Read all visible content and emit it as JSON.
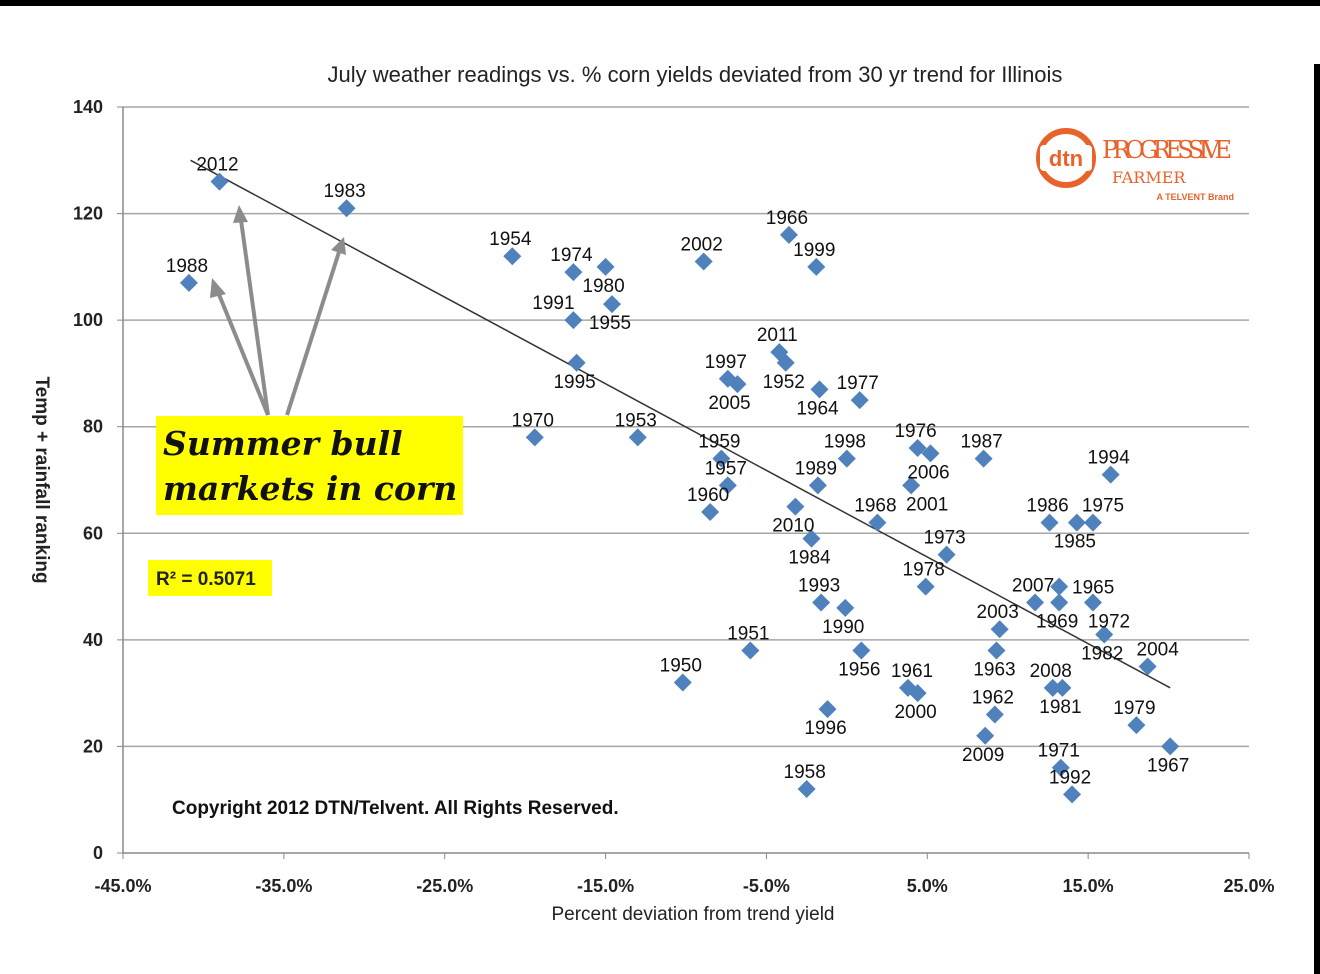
{
  "chart_data": {
    "type": "scatter",
    "title": "July weather readings vs. % corn yields deviated from 30 yr trend for Illinois",
    "xlabel": "Percent deviation from trend yield",
    "ylabel": "Temp + rainfall ranking",
    "xlim": [
      -45,
      25
    ],
    "ylim": [
      0,
      140
    ],
    "xticks": [
      -45,
      -35,
      -25,
      -15,
      -5,
      5,
      15,
      25
    ],
    "xtick_labels": [
      "-45.0%",
      "-35.0%",
      "-25.0%",
      "-15.0%",
      "-5.0%",
      "5.0%",
      "15.0%",
      "25.0%"
    ],
    "yticks": [
      0,
      20,
      40,
      60,
      80,
      100,
      120,
      140
    ],
    "ytick_labels": [
      "0",
      "20",
      "40",
      "60",
      "80",
      "100",
      "120",
      "140"
    ],
    "grid": "horizontal",
    "marker_color": "#4f81bd",
    "points": [
      {
        "label": "2012",
        "x": -39.0,
        "y": 126
      },
      {
        "label": "1983",
        "x": -31.1,
        "y": 121
      },
      {
        "label": "1988",
        "x": -40.9,
        "y": 107
      },
      {
        "label": "1954",
        "x": -20.8,
        "y": 112
      },
      {
        "label": "1974",
        "x": -17.0,
        "y": 109
      },
      {
        "label": "1980",
        "x": -15.0,
        "y": 110
      },
      {
        "label": "1955",
        "x": -14.6,
        "y": 103
      },
      {
        "label": "1991",
        "x": -17.0,
        "y": 100
      },
      {
        "label": "1995",
        "x": -16.8,
        "y": 92
      },
      {
        "label": "2002",
        "x": -8.9,
        "y": 111
      },
      {
        "label": "1966",
        "x": -3.6,
        "y": 116
      },
      {
        "label": "1999",
        "x": -1.9,
        "y": 110
      },
      {
        "label": "2011",
        "x": -4.2,
        "y": 94
      },
      {
        "label": "1952",
        "x": -3.8,
        "y": 92
      },
      {
        "label": "1997",
        "x": -7.4,
        "y": 89
      },
      {
        "label": "2005",
        "x": -6.8,
        "y": 88
      },
      {
        "label": "1964",
        "x": -1.7,
        "y": 87
      },
      {
        "label": "1977",
        "x": 0.8,
        "y": 85
      },
      {
        "label": "1970",
        "x": -19.4,
        "y": 78
      },
      {
        "label": "1953",
        "x": -13.0,
        "y": 78
      },
      {
        "label": "1959",
        "x": -7.8,
        "y": 74
      },
      {
        "label": "1957",
        "x": -7.4,
        "y": 69
      },
      {
        "label": "1960",
        "x": -8.5,
        "y": 64
      },
      {
        "label": "1998",
        "x": 0.0,
        "y": 74
      },
      {
        "label": "1989",
        "x": -1.8,
        "y": 69
      },
      {
        "label": "2010",
        "x": -3.2,
        "y": 65
      },
      {
        "label": "1984",
        "x": -2.2,
        "y": 59
      },
      {
        "label": "1968",
        "x": 1.9,
        "y": 62
      },
      {
        "label": "1976",
        "x": 4.4,
        "y": 76
      },
      {
        "label": "2006",
        "x": 5.2,
        "y": 75
      },
      {
        "label": "2001",
        "x": 4.0,
        "y": 69
      },
      {
        "label": "1987",
        "x": 8.5,
        "y": 74
      },
      {
        "label": "1973",
        "x": 6.2,
        "y": 56
      },
      {
        "label": "1978",
        "x": 4.9,
        "y": 50
      },
      {
        "label": "1993",
        "x": -1.6,
        "y": 47
      },
      {
        "label": "1990",
        "x": -0.1,
        "y": 46
      },
      {
        "label": "1956",
        "x": 0.9,
        "y": 38
      },
      {
        "label": "1951",
        "x": -6.0,
        "y": 38
      },
      {
        "label": "1950",
        "x": -10.2,
        "y": 32
      },
      {
        "label": "1996",
        "x": -1.2,
        "y": 27
      },
      {
        "label": "1958",
        "x": -2.5,
        "y": 12
      },
      {
        "label": "1961",
        "x": 3.8,
        "y": 31
      },
      {
        "label": "2000",
        "x": 4.4,
        "y": 30
      },
      {
        "label": "2003",
        "x": 9.5,
        "y": 42
      },
      {
        "label": "1963",
        "x": 9.3,
        "y": 38
      },
      {
        "label": "1962",
        "x": 9.2,
        "y": 26
      },
      {
        "label": "2009",
        "x": 8.6,
        "y": 22
      },
      {
        "label": "1986",
        "x": 12.6,
        "y": 62
      },
      {
        "label": "1985",
        "x": 14.3,
        "y": 62
      },
      {
        "label": "1975",
        "x": 15.3,
        "y": 62
      },
      {
        "label": "1994",
        "x": 16.4,
        "y": 71
      },
      {
        "label": "2007",
        "x": 11.7,
        "y": 47
      },
      {
        "label": "1965",
        "x": 13.2,
        "y": 50
      },
      {
        "label": "1969",
        "x": 13.2,
        "y": 47
      },
      {
        "label": "1972",
        "x": 15.3,
        "y": 47
      },
      {
        "label": "1982",
        "x": 16.0,
        "y": 41
      },
      {
        "label": "2004",
        "x": 18.7,
        "y": 35
      },
      {
        "label": "2008",
        "x": 12.8,
        "y": 31
      },
      {
        "label": "1981",
        "x": 13.4,
        "y": 31
      },
      {
        "label": "1979",
        "x": 18.0,
        "y": 24
      },
      {
        "label": "1967",
        "x": 20.1,
        "y": 20
      },
      {
        "label": "1971",
        "x": 13.3,
        "y": 16
      },
      {
        "label": "1992",
        "x": 14.0,
        "y": 11
      }
    ],
    "trendline": {
      "type": "linear",
      "from": [
        -40.8,
        130
      ],
      "to": [
        20.1,
        31
      ],
      "r_squared_label": "R² = 0.5071"
    },
    "annotations": {
      "callout_line1": "Summer bull",
      "callout_line2": "markets in corn",
      "copyright": "Copyright 2012 DTN/Telvent. All Rights Reserved."
    }
  },
  "logo": {
    "dtn": "dtn",
    "brand": "PROGRESSIVE FARMER",
    "brand_line1": "PROGRESSIVE",
    "brand_line2": "FARMER",
    "sub": "A TELVENT Brand",
    "color": "#e8632b"
  },
  "colors": {
    "callout_bg": "#ffff00",
    "r2_bg": "#ffff00",
    "trendline": "#333333",
    "grid": "#a6a6a6"
  }
}
